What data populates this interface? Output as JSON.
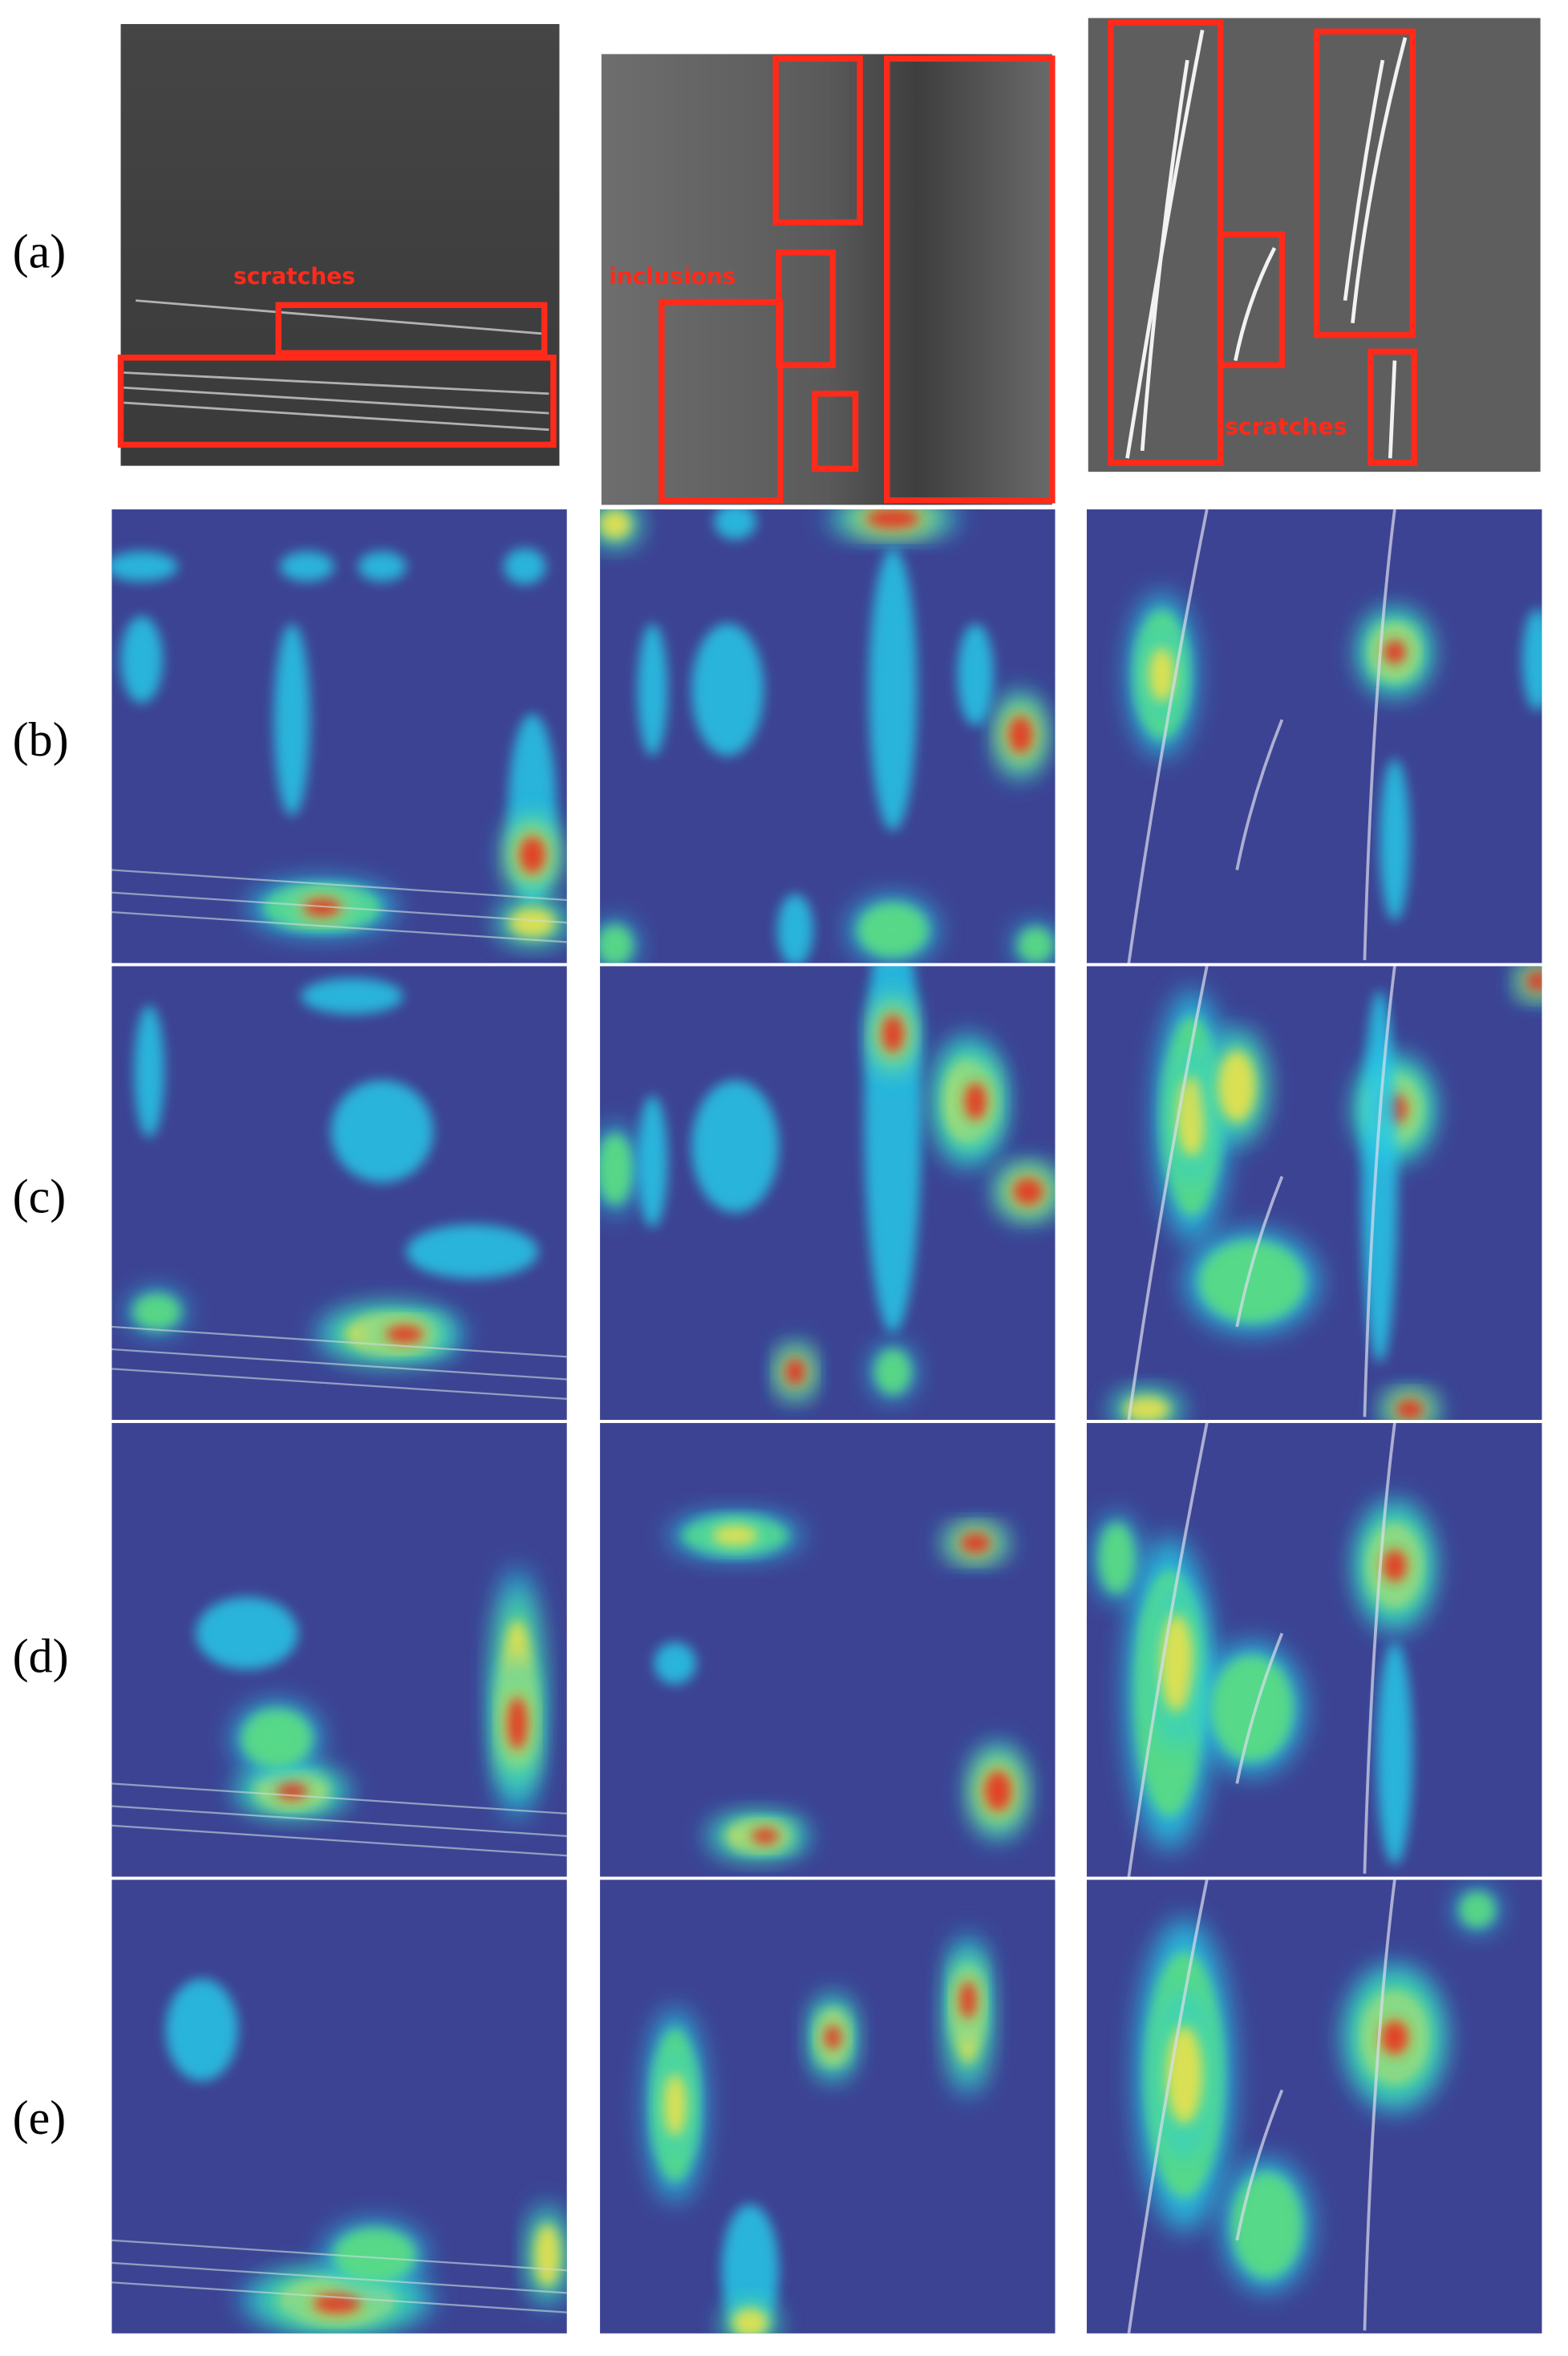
{
  "row_labels": [
    "(a)",
    "(b)",
    "(c)",
    "(d)",
    "(e)"
  ],
  "annotations": [
    "scratches",
    "inclusions",
    "scratches"
  ]
}
